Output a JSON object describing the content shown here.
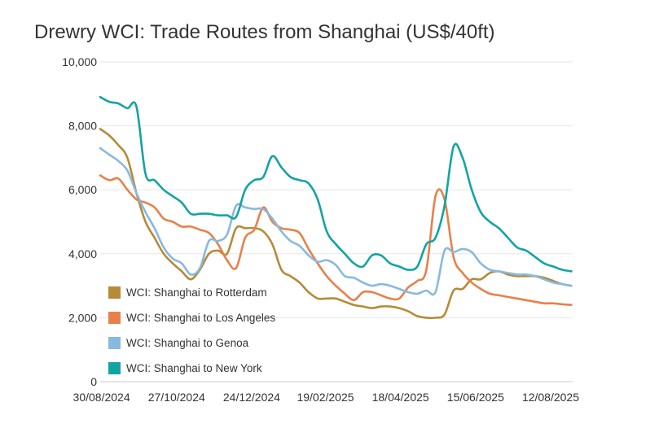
{
  "chart_data": {
    "type": "line",
    "title": "Drewry WCI: Trade Routes from Shanghai (US$/40ft)",
    "xlabel": "",
    "ylabel": "",
    "ylim": [
      0,
      10000
    ],
    "yticks": [
      0,
      2000,
      4000,
      6000,
      8000,
      10000
    ],
    "ytick_labels": [
      "0",
      "2,000",
      "4,000",
      "6,000",
      "8,000",
      "10,000"
    ],
    "xlim": [
      "2024-08-29",
      "2025-08-29"
    ],
    "xticks": [
      "2024-08-30",
      "2024-10-27",
      "2024-12-24",
      "2025-02-19",
      "2025-04-18",
      "2025-06-15",
      "2025-08-12"
    ],
    "xtick_labels": [
      "30/08/2024",
      "27/10/2024",
      "24/12/2024",
      "19/02/2025",
      "18/04/2025",
      "15/06/2025",
      "12/08/2025"
    ],
    "grid": true,
    "legend_position": "lower-left",
    "dates": [
      "2024-08-29",
      "2024-09-05",
      "2024-09-12",
      "2024-09-19",
      "2024-09-26",
      "2024-10-03",
      "2024-10-10",
      "2024-10-17",
      "2024-10-24",
      "2024-10-31",
      "2024-11-07",
      "2024-11-14",
      "2024-11-21",
      "2024-11-28",
      "2024-12-05",
      "2024-12-12",
      "2024-12-19",
      "2024-12-26",
      "2025-01-02",
      "2025-01-09",
      "2025-01-16",
      "2025-01-23",
      "2025-01-30",
      "2025-02-06",
      "2025-02-13",
      "2025-02-20",
      "2025-02-27",
      "2025-03-06",
      "2025-03-13",
      "2025-03-20",
      "2025-03-27",
      "2025-04-03",
      "2025-04-10",
      "2025-04-17",
      "2025-04-24",
      "2025-05-01",
      "2025-05-08",
      "2025-05-15",
      "2025-05-22",
      "2025-05-29",
      "2025-06-05",
      "2025-06-12",
      "2025-06-19",
      "2025-06-26",
      "2025-07-03",
      "2025-07-10",
      "2025-07-17",
      "2025-07-24",
      "2025-07-31",
      "2025-08-07",
      "2025-08-14",
      "2025-08-21",
      "2025-08-28"
    ],
    "series": [
      {
        "name": "WCI: Shanghai to Rotterdam",
        "color": "#b58b37",
        "values": [
          7900,
          7700,
          7400,
          7000,
          5900,
          5000,
          4500,
          4000,
          3700,
          3450,
          3200,
          3500,
          4000,
          4100,
          4000,
          4800,
          4800,
          4800,
          4700,
          4300,
          3500,
          3300,
          3100,
          2800,
          2600,
          2600,
          2600,
          2500,
          2400,
          2350,
          2300,
          2350,
          2350,
          2300,
          2200,
          2050,
          2000,
          2000,
          2100,
          2850,
          2900,
          3200,
          3200,
          3400,
          3450,
          3350,
          3300,
          3300,
          3300,
          3250,
          3150,
          3050,
          3000
        ]
      },
      {
        "name": "WCI: Shanghai to Los Angeles",
        "color": "#e8804a",
        "values": [
          6450,
          6300,
          6350,
          6000,
          5700,
          5600,
          5450,
          5100,
          5000,
          4850,
          4850,
          4750,
          4650,
          4300,
          3800,
          3550,
          4500,
          4750,
          5450,
          5000,
          4800,
          4750,
          4650,
          4150,
          3700,
          3300,
          3000,
          2750,
          2550,
          2800,
          2800,
          2700,
          2600,
          2600,
          2950,
          3150,
          3500,
          5800,
          5700,
          3900,
          3400,
          3100,
          2900,
          2750,
          2700,
          2650,
          2600,
          2550,
          2500,
          2450,
          2450,
          2420,
          2400
        ]
      },
      {
        "name": "WCI: Shanghai to Genoa",
        "color": "#88b9df",
        "values": [
          7300,
          7100,
          6900,
          6600,
          5900,
          5300,
          4800,
          4200,
          3850,
          3700,
          3350,
          3550,
          4400,
          4400,
          4600,
          5500,
          5450,
          5400,
          5400,
          5100,
          4700,
          4400,
          4250,
          3950,
          3750,
          3800,
          3650,
          3300,
          3250,
          3100,
          3000,
          3050,
          3000,
          2900,
          2800,
          2750,
          2850,
          2800,
          4100,
          4050,
          4150,
          4050,
          3700,
          3500,
          3450,
          3400,
          3350,
          3350,
          3300,
          3200,
          3100,
          3050,
          3000
        ]
      },
      {
        "name": "WCI: Shanghai to New York",
        "color": "#14a3a3",
        "values": [
          8900,
          8750,
          8700,
          8550,
          8600,
          6500,
          6300,
          6000,
          5800,
          5600,
          5250,
          5250,
          5250,
          5200,
          5200,
          5150,
          6000,
          6300,
          6400,
          7050,
          6700,
          6400,
          6300,
          6200,
          5700,
          4700,
          4300,
          4000,
          3700,
          3600,
          3950,
          3950,
          3700,
          3600,
          3500,
          3600,
          4300,
          4500,
          5500,
          7350,
          7000,
          6000,
          5300,
          5000,
          4800,
          4500,
          4200,
          4100,
          3900,
          3700,
          3600,
          3500,
          3450
        ]
      }
    ]
  }
}
